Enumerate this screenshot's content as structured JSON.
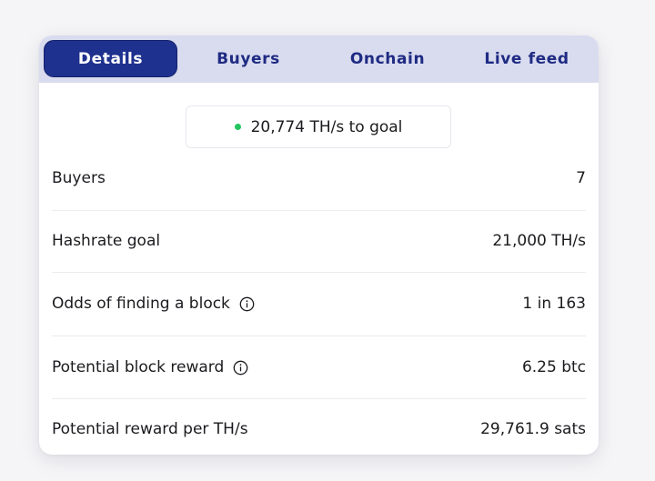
{
  "tabs": {
    "details": "Details",
    "buyers": "Buyers",
    "onchain": "Onchain",
    "live_feed": "Live feed",
    "active": "details"
  },
  "goal": {
    "text": "20,774 TH/s to goal",
    "indicator_color": "#22c55e"
  },
  "details": [
    {
      "label": "Buyers",
      "value": "7",
      "info_icon": false
    },
    {
      "label": "Hashrate goal",
      "value": "21,000 TH/s",
      "info_icon": false
    },
    {
      "label": "Odds of finding a block",
      "value": "1 in 163",
      "info_icon": true
    },
    {
      "label": "Potential block reward",
      "value": "6.25 btc",
      "info_icon": true
    },
    {
      "label": "Potential reward per TH/s",
      "value": "29,761.9 sats",
      "info_icon": false
    }
  ],
  "colors": {
    "accent": "#1f318f",
    "tabbar_bg": "#d9dcef",
    "tab_text": "#1f2b83"
  },
  "icons": {
    "info": "info-circle-icon",
    "status": "status-dot-icon"
  }
}
